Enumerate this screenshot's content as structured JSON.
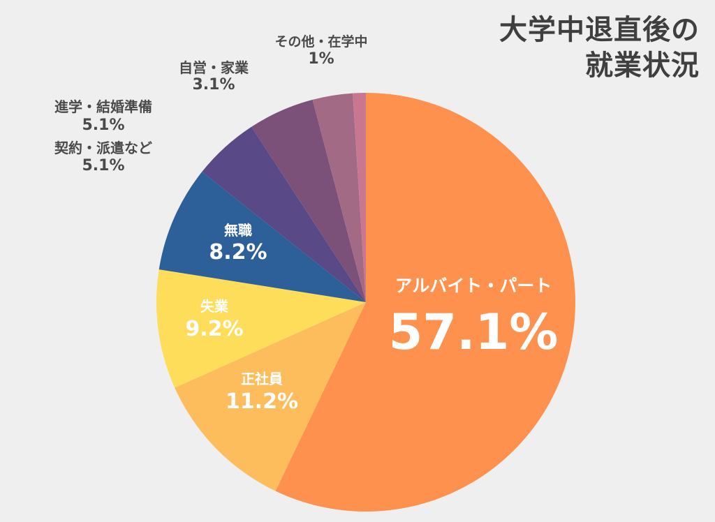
{
  "title": {
    "line1": "大学中退直後の",
    "line2": "就業状況"
  },
  "chart_data": {
    "type": "pie",
    "title": "大学中退直後の就業状況",
    "slices": [
      {
        "label": "アルバイト・パート",
        "value": 57.1,
        "display": "57.1%",
        "color": "#fe914e"
      },
      {
        "label": "正社員",
        "value": 11.2,
        "display": "11.2%",
        "color": "#fdbd5d"
      },
      {
        "label": "失業",
        "value": 9.2,
        "display": "9.2%",
        "color": "#fedd5b"
      },
      {
        "label": "無職",
        "value": 8.2,
        "display": "8.2%",
        "color": "#2d5f99"
      },
      {
        "label": "契約・派遣など",
        "value": 5.1,
        "display": "5.1%",
        "color": "#594986"
      },
      {
        "label": "進学・結婚準備",
        "value": 5.1,
        "display": "5.1%",
        "color": "#7b5079"
      },
      {
        "label": "自営・家業",
        "value": 3.1,
        "display": "3.1%",
        "color": "#a36a86"
      },
      {
        "label": "その他・在学中",
        "value": 1,
        "display": "1%",
        "color": "#c97790"
      }
    ]
  }
}
